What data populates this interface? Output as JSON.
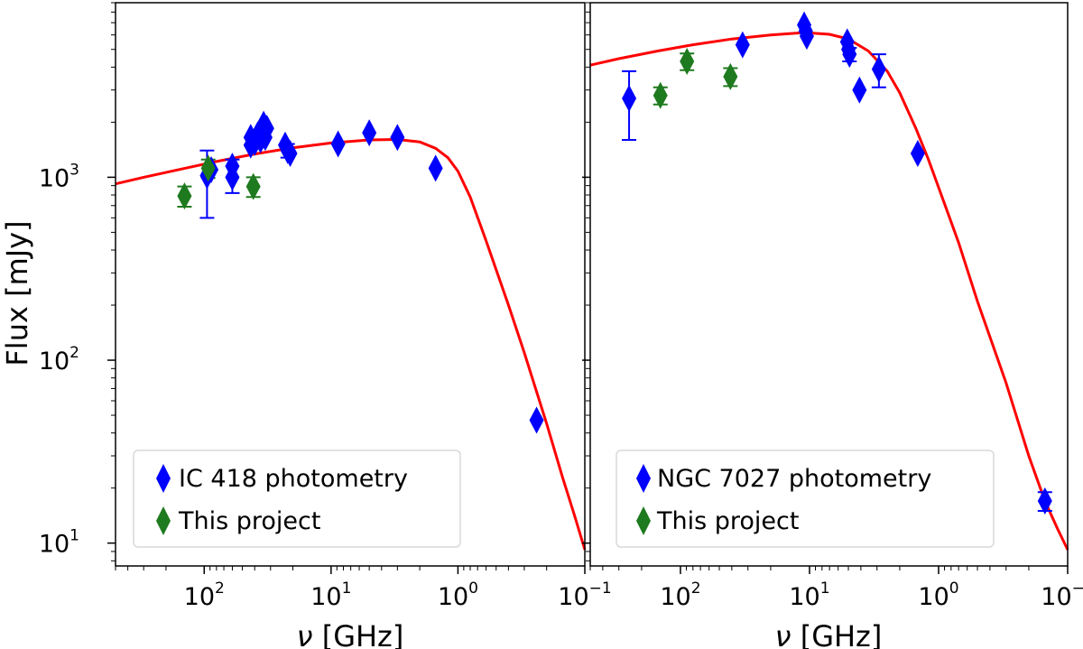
{
  "figure": {
    "ylabel": "Flux [mJy]",
    "xlabel_symbol": "ν",
    "xlabel_unit": " [GHz]"
  },
  "colors": {
    "photometry": "#0000ff",
    "project": "#1e7a1e",
    "model": "#ff0000",
    "legend_border": "#d9d9d9"
  },
  "chart_data": [
    {
      "type": "scatter",
      "title": "",
      "xlabel": "ν [GHz]",
      "ylabel": "Flux [mJy]",
      "xscale": "log",
      "yscale": "log",
      "x_direction": "reversed",
      "xlim": [
        500,
        0.1
      ],
      "ylim": [
        7.5,
        9000
      ],
      "x_ticks": [
        {
          "value": 100,
          "base": "10",
          "exp": "2"
        },
        {
          "value": 10,
          "base": "10",
          "exp": "1"
        },
        {
          "value": 1,
          "base": "10",
          "exp": "0"
        },
        {
          "value": 0.1,
          "base": "10",
          "exp": "−1"
        }
      ],
      "y_ticks": [
        {
          "value": 10,
          "base": "10",
          "exp": "1"
        },
        {
          "value": 100,
          "base": "10",
          "exp": "2"
        },
        {
          "value": 1000,
          "base": "10",
          "exp": "3"
        }
      ],
      "legend": {
        "position": "lower-left",
        "entries": [
          "IC 418 photometry",
          "This project"
        ]
      },
      "series": [
        {
          "name": "IC 418 photometry",
          "marker": "diamond",
          "points": [
            {
              "x": 95,
              "y": 1020,
              "yerr": [
                600,
                1400
              ]
            },
            {
              "x": 88,
              "y": 1100
            },
            {
              "x": 60,
              "y": 1000,
              "yerr": [
                820,
                1250
              ]
            },
            {
              "x": 60,
              "y": 1150
            },
            {
              "x": 43,
              "y": 1500
            },
            {
              "x": 43,
              "y": 1650
            },
            {
              "x": 40,
              "y": 1550
            },
            {
              "x": 38,
              "y": 1700
            },
            {
              "x": 36,
              "y": 1600
            },
            {
              "x": 35,
              "y": 1800
            },
            {
              "x": 34,
              "y": 1950
            },
            {
              "x": 33,
              "y": 1650
            },
            {
              "x": 32,
              "y": 1850
            },
            {
              "x": 23,
              "y": 1500
            },
            {
              "x": 22,
              "y": 1400,
              "yerr": [
                1280,
                1520
              ]
            },
            {
              "x": 21,
              "y": 1350
            },
            {
              "x": 8.8,
              "y": 1520
            },
            {
              "x": 5.0,
              "y": 1750
            },
            {
              "x": 3.0,
              "y": 1650
            },
            {
              "x": 1.5,
              "y": 1120
            },
            {
              "x": 0.24,
              "y": 47
            }
          ]
        },
        {
          "name": "This project",
          "marker": "diamond",
          "points": [
            {
              "x": 143,
              "y": 790,
              "yerr": [
                690,
                890
              ]
            },
            {
              "x": 93,
              "y": 1120,
              "yerr": [
                990,
                1250
              ]
            },
            {
              "x": 41,
              "y": 890,
              "yerr": [
                780,
                1000
              ]
            }
          ]
        },
        {
          "name": "Model fit",
          "type": "line",
          "points": [
            {
              "x": 500,
              "y": 920
            },
            {
              "x": 300,
              "y": 1000
            },
            {
              "x": 150,
              "y": 1110
            },
            {
              "x": 80,
              "y": 1220
            },
            {
              "x": 40,
              "y": 1340
            },
            {
              "x": 20,
              "y": 1450
            },
            {
              "x": 10,
              "y": 1540
            },
            {
              "x": 5,
              "y": 1600
            },
            {
              "x": 3,
              "y": 1610
            },
            {
              "x": 2,
              "y": 1560
            },
            {
              "x": 1.5,
              "y": 1440
            },
            {
              "x": 1.2,
              "y": 1280
            },
            {
              "x": 1.0,
              "y": 1080
            },
            {
              "x": 0.8,
              "y": 780
            },
            {
              "x": 0.6,
              "y": 450
            },
            {
              "x": 0.4,
              "y": 200
            },
            {
              "x": 0.3,
              "y": 110
            },
            {
              "x": 0.2,
              "y": 45
            },
            {
              "x": 0.15,
              "y": 23
            },
            {
              "x": 0.12,
              "y": 14
            },
            {
              "x": 0.1,
              "y": 9.2
            }
          ]
        }
      ]
    },
    {
      "type": "scatter",
      "title": "",
      "xlabel": "ν [GHz]",
      "ylabel": "",
      "xscale": "log",
      "yscale": "log",
      "x_direction": "reversed",
      "xlim": [
        500,
        0.1
      ],
      "ylim": [
        7.5,
        9000
      ],
      "x_ticks": [
        {
          "value": 100,
          "base": "10",
          "exp": "2"
        },
        {
          "value": 10,
          "base": "10",
          "exp": "1"
        },
        {
          "value": 1,
          "base": "10",
          "exp": "0"
        },
        {
          "value": 0.1,
          "base": "10",
          "exp": "−1"
        }
      ],
      "y_ticks": [],
      "legend": {
        "position": "lower-left",
        "entries": [
          "NGC 7027 photometry",
          "This project"
        ]
      },
      "series": [
        {
          "name": "NGC 7027 photometry",
          "marker": "diamond",
          "points": [
            {
              "x": 250,
              "y": 2700,
              "yerr": [
                1600,
                3800
              ]
            },
            {
              "x": 33,
              "y": 5300
            },
            {
              "x": 11,
              "y": 6800
            },
            {
              "x": 10.7,
              "y": 6300
            },
            {
              "x": 10.5,
              "y": 5900
            },
            {
              "x": 5.1,
              "y": 5500
            },
            {
              "x": 5.0,
              "y": 5000
            },
            {
              "x": 4.9,
              "y": 4700,
              "yerr": [
                4300,
                5100
              ]
            },
            {
              "x": 4.1,
              "y": 3000
            },
            {
              "x": 2.9,
              "y": 3900,
              "yerr": [
                3100,
                4700
              ]
            },
            {
              "x": 1.45,
              "y": 1350
            },
            {
              "x": 0.15,
              "y": 17,
              "yerr": [
                15,
                19
              ]
            }
          ]
        },
        {
          "name": "This project",
          "marker": "diamond",
          "points": [
            {
              "x": 143,
              "y": 2800,
              "yerr": [
                2500,
                3100
              ]
            },
            {
              "x": 89,
              "y": 4300,
              "yerr": [
                3850,
                4750
              ]
            },
            {
              "x": 41,
              "y": 3550,
              "yerr": [
                3150,
                3950
              ]
            }
          ]
        },
        {
          "name": "Model fit",
          "type": "line",
          "points": [
            {
              "x": 500,
              "y": 4100
            },
            {
              "x": 300,
              "y": 4450
            },
            {
              "x": 150,
              "y": 4900
            },
            {
              "x": 80,
              "y": 5300
            },
            {
              "x": 40,
              "y": 5700
            },
            {
              "x": 20,
              "y": 6000
            },
            {
              "x": 12,
              "y": 6150
            },
            {
              "x": 10,
              "y": 6150
            },
            {
              "x": 7,
              "y": 6050
            },
            {
              "x": 5,
              "y": 5700
            },
            {
              "x": 3.5,
              "y": 4900
            },
            {
              "x": 2.5,
              "y": 3800
            },
            {
              "x": 2,
              "y": 2900
            },
            {
              "x": 1.5,
              "y": 1850
            },
            {
              "x": 1.2,
              "y": 1250
            },
            {
              "x": 1.0,
              "y": 880
            },
            {
              "x": 0.7,
              "y": 440
            },
            {
              "x": 0.5,
              "y": 210
            },
            {
              "x": 0.3,
              "y": 75
            },
            {
              "x": 0.2,
              "y": 30
            },
            {
              "x": 0.15,
              "y": 17
            },
            {
              "x": 0.12,
              "y": 12
            },
            {
              "x": 0.1,
              "y": 9.2
            }
          ]
        }
      ]
    }
  ]
}
